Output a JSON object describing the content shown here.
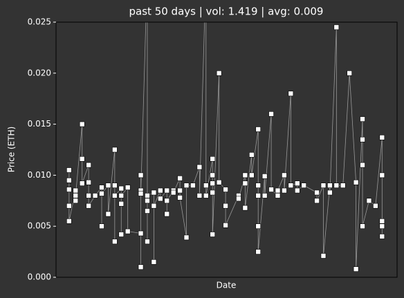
{
  "chart_data": {
    "type": "line",
    "title": "past 50 days | vol: 1.419 | avg: 0.009",
    "xlabel": "Date",
    "ylabel": "Price (ETH)",
    "xlim": [
      -2,
      50.3
    ],
    "ylim": [
      0,
      0.025
    ],
    "yticks": [
      {
        "value": 0,
        "label": "0.000"
      },
      0.005,
      {
        "value": 0.01,
        "label": "0.010"
      },
      0.015,
      {
        "value": 0.02,
        "label": "0.020"
      },
      0.025
    ],
    "series": [
      {
        "color": "#999999",
        "marker_color": "#ffffff",
        "x": [
          0,
          0,
          0,
          0,
          0,
          1,
          1,
          1,
          2,
          2,
          2,
          3,
          3,
          3,
          3,
          4,
          5,
          5,
          5,
          6,
          6,
          7,
          7,
          7,
          7,
          8,
          8,
          8,
          8,
          9,
          9,
          11,
          11,
          11,
          11,
          11,
          12,
          12,
          12,
          12,
          12,
          13,
          13,
          13,
          14,
          14,
          15,
          15,
          15,
          16,
          16,
          17,
          17,
          17,
          18,
          18,
          19,
          20,
          20,
          21,
          21,
          21,
          22,
          22,
          22,
          22,
          22,
          23,
          23,
          24,
          24,
          24,
          26,
          26,
          27,
          27,
          27,
          28,
          28,
          29,
          29,
          29,
          29,
          29,
          30,
          30,
          31,
          31,
          32,
          32,
          33,
          33,
          34,
          34,
          35,
          35,
          36,
          38,
          38,
          39,
          39,
          40,
          40,
          41,
          41,
          42,
          43,
          44,
          44,
          45,
          45,
          45,
          45,
          46,
          47,
          48,
          48,
          48,
          48,
          48
        ],
        "values": [
          0.0105,
          0.0095,
          0.0086,
          0.007,
          0.0055,
          0.0085,
          0.0075,
          0.008,
          0.015,
          0.0116,
          0.0092,
          0.011,
          0.0093,
          0.008,
          0.007,
          0.008,
          0.0088,
          0.005,
          0.0082,
          0.009,
          0.0062,
          0.0125,
          0.009,
          0.0035,
          0.008,
          0.0087,
          0.0072,
          0.0042,
          0.008,
          0.0088,
          0.0045,
          0.0043,
          0.001,
          0.01,
          0.0085,
          0.0082,
          0.03,
          0.0075,
          0.0065,
          0.0035,
          0.008,
          0.0083,
          0.0015,
          0.007,
          0.0085,
          0.0077,
          0.0085,
          0.0062,
          0.0075,
          0.0085,
          0.0083,
          0.0097,
          0.0085,
          0.0078,
          0.0039,
          0.009,
          0.009,
          0.0108,
          0.008,
          0.03,
          0.009,
          0.008,
          0.0116,
          0.01,
          0.0092,
          0.0083,
          0.0042,
          0.02,
          0.0093,
          0.0086,
          0.007,
          0.0051,
          0.008,
          0.0077,
          0.01,
          0.0092,
          0.0068,
          0.012,
          0.01,
          0.0145,
          0.009,
          0.008,
          0.005,
          0.0025,
          0.0099,
          0.008,
          0.016,
          0.0086,
          0.008,
          0.0085,
          0.01,
          0.0085,
          0.018,
          0.009,
          0.0092,
          0.0085,
          0.009,
          0.0083,
          0.0075,
          0.009,
          0.0021,
          0.009,
          0.0083,
          0.0245,
          0.009,
          0.009,
          0.02,
          0.0093,
          0.0008,
          0.0155,
          0.0135,
          0.011,
          0.005,
          0.0075,
          0.007,
          0.0137,
          0.01,
          0.0055,
          0.005,
          0.004
        ]
      }
    ]
  }
}
